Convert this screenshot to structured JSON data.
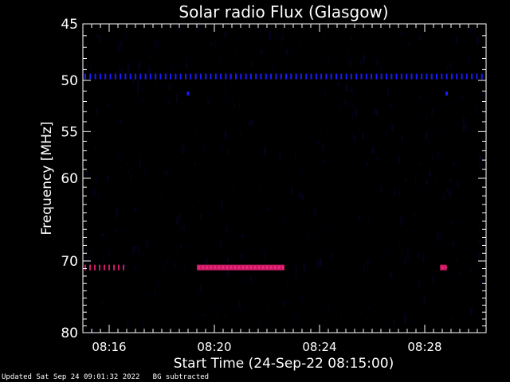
{
  "chart_data": {
    "type": "heatmap",
    "title": "Solar radio Flux (Glasgow)",
    "xlabel": "Start Time (24-Sep-22 08:15:00)",
    "ylabel": "Frequency [MHz]",
    "x_unit": "minutes",
    "xlim": [
      "08:15:00",
      "08:30:20"
    ],
    "ylim": [
      45,
      80
    ],
    "y_scale": "log",
    "x_ticks": [
      "08:16",
      "08:20",
      "08:24",
      "08:28"
    ],
    "y_ticks": [
      45,
      50,
      55,
      60,
      70,
      80
    ],
    "features": [
      {
        "label": "interference-line",
        "freq_mhz": 49.6,
        "start": "08:15:00",
        "end": "08:30:20",
        "style": "dashed",
        "intensity": "medium",
        "color": "#1a1aff"
      },
      {
        "label": "interference-line",
        "freq_mhz": 70.8,
        "start": "08:15:00",
        "end": "08:16:40",
        "style": "dashed",
        "intensity": "high",
        "color": "#cc1a66"
      },
      {
        "label": "interference-line",
        "freq_mhz": 70.8,
        "start": "08:19:20",
        "end": "08:22:40",
        "style": "solid",
        "intensity": "high",
        "color": "#cc1a66"
      },
      {
        "label": "interference-line",
        "freq_mhz": 70.8,
        "start": "08:28:35",
        "end": "08:28:50",
        "style": "solid",
        "intensity": "high",
        "color": "#cc1a66"
      },
      {
        "label": "spot",
        "freq_mhz": 51.2,
        "time": "08:19:00",
        "color": "#1a1aff"
      },
      {
        "label": "spot",
        "freq_mhz": 51.2,
        "time": "08:28:50",
        "color": "#1a1aff"
      }
    ],
    "colors": {
      "background": "#000000",
      "noise": "#040420",
      "axes": "#ffffff"
    }
  },
  "footer": {
    "updated": "Updated Sat Sep 24 09:01:32 2022",
    "note": "BG subtracted"
  }
}
